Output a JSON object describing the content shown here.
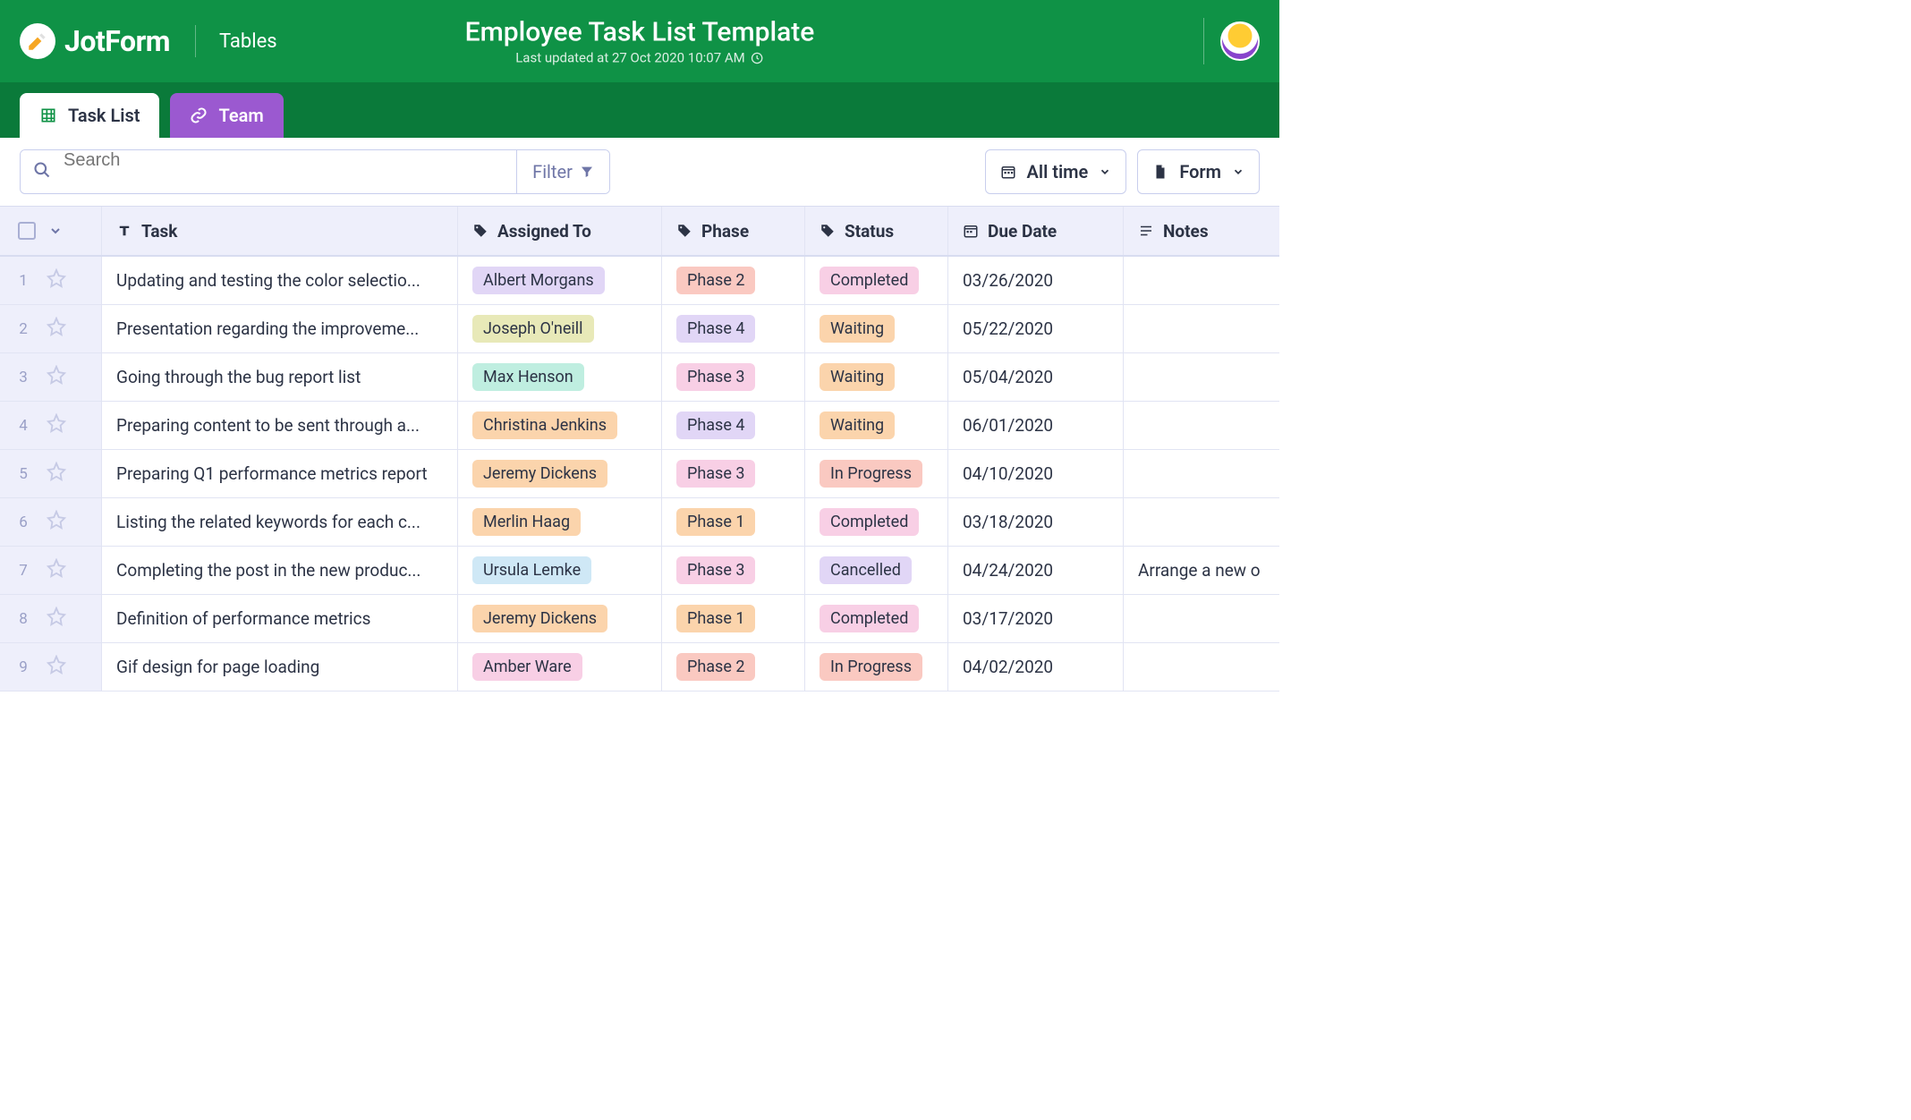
{
  "header": {
    "brand": "JotForm",
    "brand_sub": "Tables",
    "title": "Employee Task List Template",
    "updated_label": "Last updated at 27 Oct 2020 10:07 AM",
    "colors": {
      "bg": "#0f9246",
      "tabs_bg": "#0a7a3a"
    }
  },
  "tabs": [
    {
      "label": "Task List",
      "active": true
    },
    {
      "label": "Team",
      "active": false,
      "color": "#9b59d0"
    }
  ],
  "toolbar": {
    "search_placeholder": "Search",
    "filter_label": "Filter",
    "time_label": "All time",
    "form_label": "Form"
  },
  "columns": [
    {
      "key": "task",
      "label": "Task",
      "icon": "text"
    },
    {
      "key": "assigned",
      "label": "Assigned To",
      "icon": "tag"
    },
    {
      "key": "phase",
      "label": "Phase",
      "icon": "tag"
    },
    {
      "key": "status",
      "label": "Status",
      "icon": "tag"
    },
    {
      "key": "due",
      "label": "Due Date",
      "icon": "calendar"
    },
    {
      "key": "notes",
      "label": "Notes",
      "icon": "notes"
    }
  ],
  "chip_colors": {
    "assigned": {
      "Albert Morgans": "#e1d6f6",
      "Joseph O'neill": "#e8e9b8",
      "Max Henson": "#bfeee0",
      "Christina Jenkins": "#fbd4ac",
      "Jeremy Dickens": "#fbd4ac",
      "Merlin Haag": "#fbd4ac",
      "Ursula Lemke": "#cfe8f6",
      "Amber Ware": "#f8cfe5"
    },
    "phase": {
      "Phase 1": "#fbd4ac",
      "Phase 2": "#fac9c1",
      "Phase 3": "#f8cfe5",
      "Phase 4": "#e1d6f6"
    },
    "status": {
      "Completed": "#f8cfe5",
      "Waiting": "#fbd4ac",
      "In Progress": "#fac9c1",
      "Cancelled": "#e1d6f6"
    }
  },
  "rows": [
    {
      "task": "Updating and testing the color selectio...",
      "assigned": "Albert Morgans",
      "phase": "Phase 2",
      "status": "Completed",
      "due": "03/26/2020",
      "notes": ""
    },
    {
      "task": "Presentation regarding the improveme...",
      "assigned": "Joseph O'neill",
      "phase": "Phase 4",
      "status": "Waiting",
      "due": "05/22/2020",
      "notes": ""
    },
    {
      "task": "Going through the bug report list",
      "assigned": "Max Henson",
      "phase": "Phase 3",
      "status": "Waiting",
      "due": "05/04/2020",
      "notes": ""
    },
    {
      "task": "Preparing content to be sent through a...",
      "assigned": "Christina Jenkins",
      "phase": "Phase 4",
      "status": "Waiting",
      "due": "06/01/2020",
      "notes": ""
    },
    {
      "task": "Preparing Q1 performance metrics report",
      "assigned": "Jeremy Dickens",
      "phase": "Phase 3",
      "status": "In Progress",
      "due": "04/10/2020",
      "notes": ""
    },
    {
      "task": "Listing the related keywords for each c...",
      "assigned": "Merlin Haag",
      "phase": "Phase 1",
      "status": "Completed",
      "due": "03/18/2020",
      "notes": ""
    },
    {
      "task": "Completing the post in the new produc...",
      "assigned": "Ursula Lemke",
      "phase": "Phase 3",
      "status": "Cancelled",
      "due": "04/24/2020",
      "notes": "Arrange a new o"
    },
    {
      "task": "Definition of performance metrics",
      "assigned": "Jeremy Dickens",
      "phase": "Phase 1",
      "status": "Completed",
      "due": "03/17/2020",
      "notes": ""
    },
    {
      "task": "Gif design for page loading",
      "assigned": "Amber Ware",
      "phase": "Phase 2",
      "status": "In Progress",
      "due": "04/02/2020",
      "notes": ""
    }
  ]
}
